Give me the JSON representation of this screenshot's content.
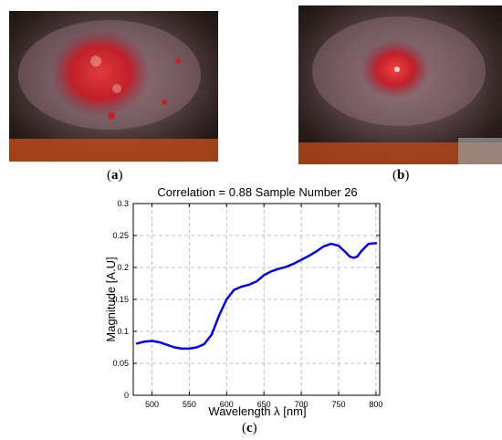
{
  "panels": {
    "a": {
      "label_open": "(",
      "label_letter": "a",
      "label_close": ")"
    },
    "b": {
      "label_open": "(",
      "label_letter": "b",
      "label_close": ")"
    },
    "c": {
      "label_open": "(",
      "label_letter": "c",
      "label_close": ")"
    }
  },
  "colors": {
    "line": "#0000ff",
    "grid": "#b0b0b0",
    "wound": "#c0202a",
    "fur_dark": "#2a1e1c",
    "fur_orange": "#b84a1a"
  },
  "chart_data": {
    "type": "line",
    "title": "Correlation = 0.88 Sample Number 26",
    "xlabel": "Wavelength λ [nm]",
    "ylabel": "Magnitude [A.U]",
    "xlim": [
      475,
      805
    ],
    "ylim": [
      0,
      0.3
    ],
    "xticks": [
      500,
      550,
      600,
      650,
      700,
      750,
      800
    ],
    "xtick_labels": [
      "500",
      "550",
      "600",
      "650",
      "700",
      "750",
      "800"
    ],
    "yticks": [
      0,
      0.05,
      0.1,
      0.15,
      0.2,
      0.25,
      0.3
    ],
    "ytick_labels": [
      "0",
      "0.05",
      "0.1",
      "0.15",
      "0.2",
      "0.25",
      "0.3"
    ],
    "grid": true,
    "series": [
      {
        "x": [
          480,
          490,
          500,
          510,
          520,
          530,
          540,
          550,
          560,
          570,
          580,
          590,
          600,
          610,
          620,
          630,
          640,
          650,
          660,
          670,
          680,
          690,
          700,
          710,
          720,
          730,
          740,
          750,
          760,
          765,
          770,
          775,
          780,
          790,
          800
        ],
        "y": [
          0.081,
          0.084,
          0.085,
          0.083,
          0.079,
          0.075,
          0.073,
          0.073,
          0.075,
          0.08,
          0.095,
          0.125,
          0.15,
          0.165,
          0.17,
          0.173,
          0.178,
          0.188,
          0.194,
          0.198,
          0.201,
          0.206,
          0.212,
          0.218,
          0.225,
          0.233,
          0.237,
          0.234,
          0.223,
          0.217,
          0.215,
          0.217,
          0.225,
          0.237,
          0.238
        ]
      }
    ]
  }
}
